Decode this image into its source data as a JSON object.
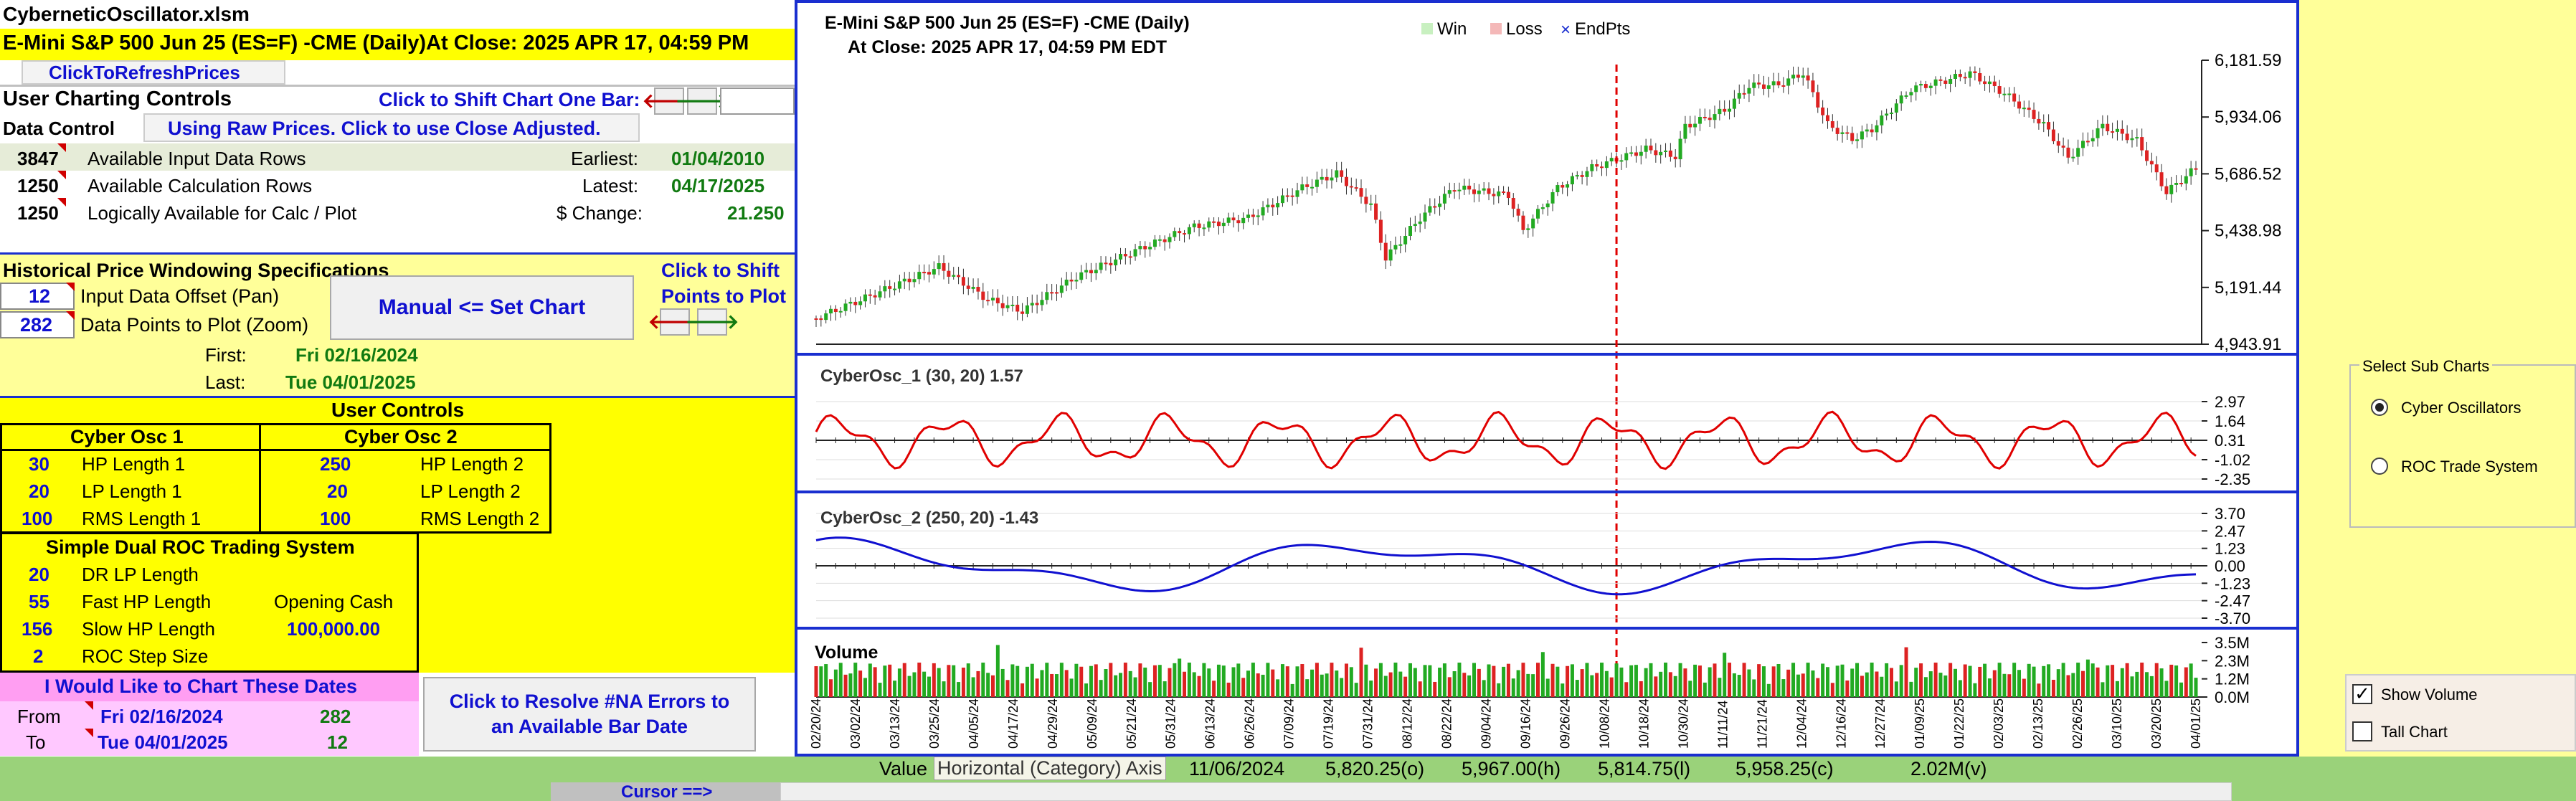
{
  "workbook": {
    "filename": "CyberneticOscillator.xlsm",
    "heading": "E-Mini S&P 500 Jun 25 (ES=F) -CME  (Daily)At Close: 2025 APR 17, 04:59 PM",
    "refresh_label": "ClickToRefreshPrices"
  },
  "controls": {
    "user_charting_title": "User Charting Controls",
    "shift_one_bar": "Click to Shift Chart One Bar:",
    "data_control": "Data Control",
    "raw_prices_button": "Using Raw Prices. Click to use Close Adjusted.",
    "rows": [
      {
        "value": "3847",
        "label": "Available Input Data Rows",
        "key": "Earliest:",
        "keyval": "01/04/2010"
      },
      {
        "value": "1250",
        "label": "Available Calculation Rows",
        "key": "Latest:",
        "keyval": "04/17/2025"
      },
      {
        "value": "1250",
        "label": "Logically Available for Calc / Plot",
        "key": "$ Change:",
        "keyval": "21.250"
      }
    ],
    "windowing_title": "Historical Price Windowing Specifications",
    "offset_value": "12",
    "offset_label": "Input Data Offset (Pan)",
    "zoom_value": "282",
    "zoom_label": "Data Points to Plot (Zoom)",
    "set_chart_button": "Manual <= Set Chart",
    "shift_points_1": "Click to Shift",
    "shift_points_2": "Points to Plot",
    "first_label": "First:",
    "first_value": "Fri 02/16/2024",
    "last_label": "Last:",
    "last_value": "Tue 04/01/2025"
  },
  "user_controls": {
    "title": "User Controls",
    "osc1_title": "Cyber Osc 1",
    "osc2_title": "Cyber Osc 2",
    "osc1": [
      {
        "v": "30",
        "l": "HP Length 1"
      },
      {
        "v": "20",
        "l": "LP Length 1"
      },
      {
        "v": "100",
        "l": "RMS Length 1"
      }
    ],
    "osc2": [
      {
        "v": "250",
        "l": "HP Length 2"
      },
      {
        "v": "20",
        "l": "LP Length 2"
      },
      {
        "v": "100",
        "l": "RMS Length 2"
      }
    ],
    "roc_title": "Simple Dual ROC Trading System",
    "roc": [
      {
        "v": "20",
        "l": "DR LP Length"
      },
      {
        "v": "55",
        "l": "Fast HP Length"
      },
      {
        "v": "156",
        "l": "Slow HP Length"
      },
      {
        "v": "2",
        "l": "ROC Step Size"
      }
    ],
    "opening_cash_label": "Opening Cash",
    "opening_cash_value": "100,000.00"
  },
  "dates": {
    "title": "I Would Like to Chart These Dates",
    "from_label": "From",
    "from_value": "Fri 02/16/2024",
    "from_count": "282",
    "to_label": "To",
    "to_value": "Tue 04/01/2025",
    "to_count": "12",
    "resolve_button": "Click to Resolve #NA Errors to an Available Bar Date"
  },
  "chart": {
    "title_line1": "E-Mini S&P 500 Jun 25 (ES=F) -CME  (Daily)",
    "title_line2": "At Close: 2025 APR 17, 04:59 PM EDT",
    "legend": [
      "Win",
      "Loss",
      "EndPts"
    ],
    "legend_colors": [
      "#c8f0c0",
      "#f4b8b8",
      "#1a2fd0"
    ],
    "price_ticks": [
      "6,181.59",
      "5,934.06",
      "5,686.52",
      "5,438.98",
      "5,191.44",
      "4,943.91"
    ],
    "osc1_label": "CyberOsc_1 (30, 20) 1.57",
    "osc1_ticks": [
      "2.97",
      "1.64",
      "0.31",
      "-1.02",
      "-2.35"
    ],
    "osc2_label": "CyberOsc_2 (250, 20) -1.43",
    "osc2_ticks": [
      "3.70",
      "2.47",
      "1.23",
      "0.00",
      "-1.23",
      "-2.47",
      "-3.70"
    ],
    "volume_label": "Volume",
    "volume_ticks": [
      "3.5M",
      "2.3M",
      "1.2M",
      "0.0M"
    ],
    "x_dates": [
      "02/20/24",
      "03/02/24",
      "03/13/24",
      "03/25/24",
      "04/05/24",
      "04/17/24",
      "04/29/24",
      "05/09/24",
      "05/21/24",
      "05/31/24",
      "06/13/24",
      "06/26/24",
      "07/09/24",
      "07/19/24",
      "07/31/24",
      "08/12/24",
      "08/22/24",
      "09/04/24",
      "09/16/24",
      "09/26/24",
      "10/08/24",
      "10/18/24",
      "10/30/24",
      "11/11/24",
      "11/21/24",
      "12/04/24",
      "12/16/24",
      "12/27/24",
      "01/09/25",
      "01/22/25",
      "02/03/25",
      "02/13/25",
      "02/26/25",
      "03/10/25",
      "03/20/25",
      "04/01/25"
    ],
    "colors": {
      "up": "#22aa22",
      "down": "#dd2222",
      "osc1": "#e00000",
      "osc2": "#1010d0",
      "cursor": "#e00000"
    }
  },
  "subcharts": {
    "title": "Select Sub Charts",
    "options": [
      "Cyber Oscillators",
      "ROC Trade System"
    ],
    "selected": 0,
    "show_volume": "Show Volume",
    "tall_chart": "Tall Chart",
    "show_volume_checked": true,
    "tall_chart_checked": false
  },
  "status": {
    "value_label": "Value",
    "tooltip": "Horizontal (Category) Axis",
    "date": "11/06/2024",
    "open": "5,820.25(o)",
    "high": "5,967.00(h)",
    "low": "5,814.75(l)",
    "close": "5,958.25(c)",
    "volume": "2.02M(v)",
    "cursor_label": "Cursor ==>"
  }
}
